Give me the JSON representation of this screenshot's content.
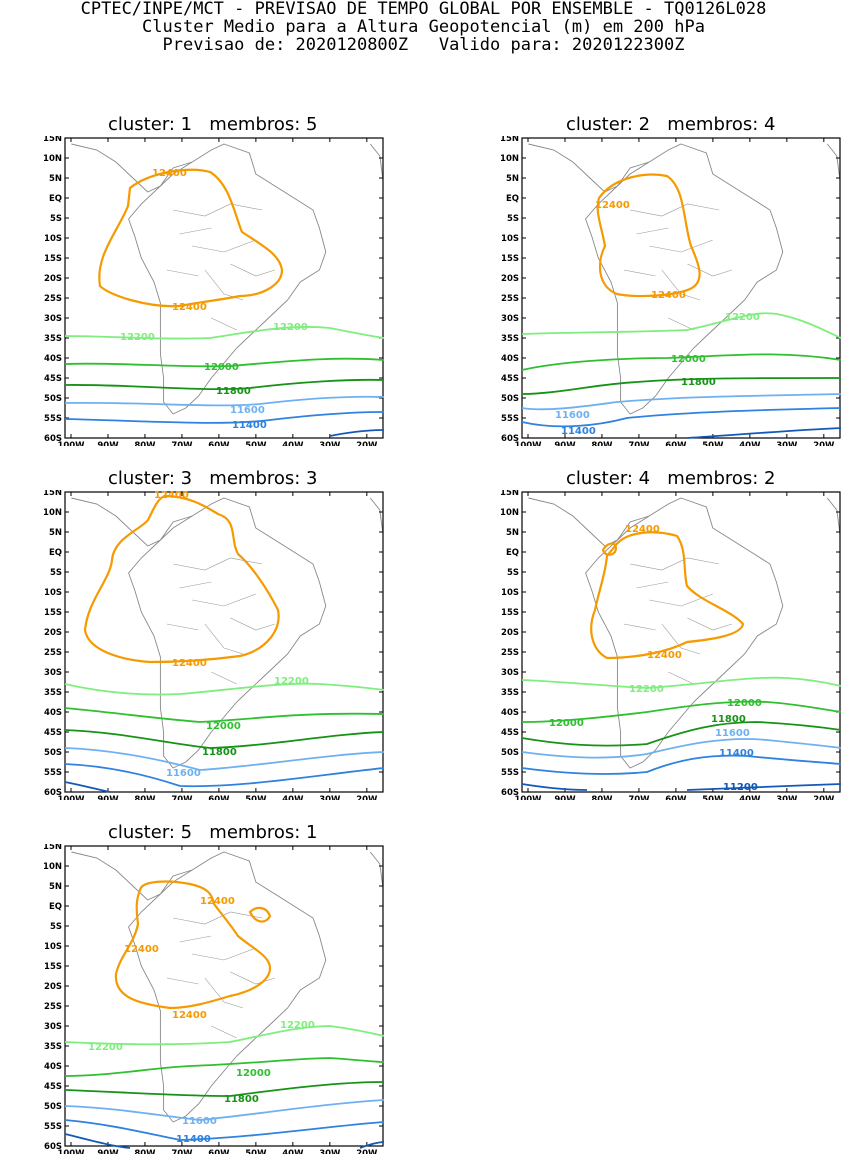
{
  "header": {
    "line1": "CPTEC/INPE/MCT - PREVISAO DE TEMPO GLOBAL POR ENSEMBLE - TQ0126L028",
    "line2": "Cluster Medio para a Altura Geopotencial (m) em 200 hPa",
    "line3": "Previsao de: 2020120800Z   Valido para: 2020122300Z"
  },
  "axes": {
    "lat_labels": [
      "15N",
      "10N",
      "5N",
      "EQ",
      "5S",
      "10S",
      "15S",
      "20S",
      "25S",
      "30S",
      "35S",
      "40S",
      "45S",
      "50S",
      "55S",
      "60S"
    ],
    "lon_labels": [
      "100W",
      "90W",
      "80W",
      "70W",
      "60W",
      "50W",
      "40W",
      "30W",
      "20W"
    ]
  },
  "contour_colors": {
    "12400": "#f59a00",
    "12200": "#7fee7f",
    "12000": "#2fbf2f",
    "11800": "#169216",
    "11600": "#6fb1f0",
    "11400": "#2f82dd",
    "11200": "#1458b8"
  },
  "panels": [
    {
      "title": "cluster: 1   membros: 5",
      "labels": {
        "c12400a": "12400",
        "c12400b": "12400",
        "c12200": "12200",
        "c12200b": "12200",
        "c12000": "12000",
        "c11800": "11800",
        "c11600": "11600",
        "c11400": "11400"
      }
    },
    {
      "title": "cluster: 2   membros: 4",
      "labels": {
        "c12400a": "12400",
        "c12400b": "12400",
        "c12200": "12200",
        "c12000": "12000",
        "c11800": "11800",
        "c11600": "11600",
        "c11400": "11400"
      }
    },
    {
      "title": "cluster: 3   membros: 3",
      "labels": {
        "c12400a": "12400",
        "c12400b": "12400",
        "c12200": "12200",
        "c12000": "12000",
        "c11800": "11800",
        "c11600": "11600"
      }
    },
    {
      "title": "cluster: 4   membros: 2",
      "labels": {
        "c12400a": "12400",
        "c12400b": "12400",
        "c12200": "12200",
        "c12000": "12000",
        "c12000b": "12000",
        "c11800": "11800",
        "c11600": "11600",
        "c11400": "11400",
        "c11200": "11200"
      }
    },
    {
      "title": "cluster: 5   membros: 1",
      "labels": {
        "c12400a": "12400",
        "c12400b": "12400",
        "c12400c": "12400",
        "c12200": "12200",
        "c12200b": "12200",
        "c12000": "12000",
        "c11800": "11800",
        "c11600": "11600",
        "c11400": "11400"
      }
    }
  ]
}
